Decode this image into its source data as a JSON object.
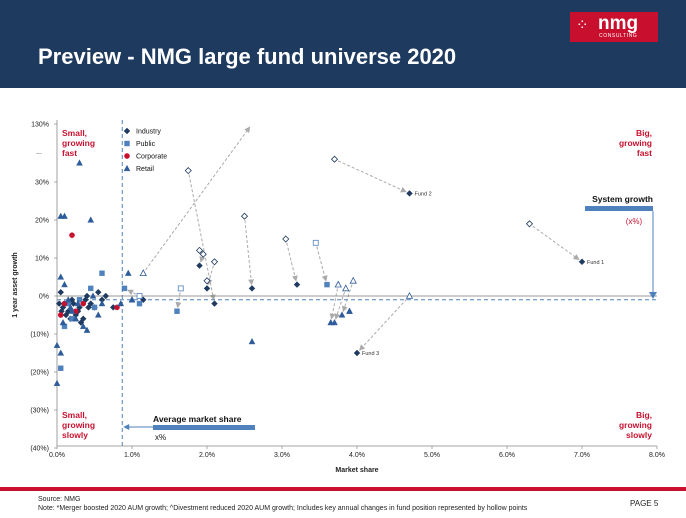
{
  "header": {
    "title": "Preview - NMG large fund universe 2020",
    "logo_text": "nmg",
    "logo_sub": "CONSULTING"
  },
  "colors": {
    "header_bg": "#1e3a5f",
    "accent_red": "#c8102e",
    "industry": "#1e3a5f",
    "public": "#4f81bd",
    "corporate": "#c8102e",
    "retail": "#2e5c9a",
    "line_blue": "#4f81bd"
  },
  "chart_data": {
    "type": "scatter",
    "xlabel": "Market share",
    "ylabel": "1 year asset growth",
    "xlim": [
      0,
      8
    ],
    "x_ticks": [
      "0.0%",
      "1.0%",
      "2.0%",
      "3.0%",
      "4.0%",
      "5.0%",
      "6.0%",
      "7.0%",
      "8.0%"
    ],
    "y_ticks": [
      {
        "v": -40,
        "label": "(40%)"
      },
      {
        "v": -30,
        "label": "(30%)"
      },
      {
        "v": -20,
        "label": "(20%)"
      },
      {
        "v": -10,
        "label": "(10%)"
      },
      {
        "v": 0,
        "label": "0%"
      },
      {
        "v": 10,
        "label": "10%"
      },
      {
        "v": 20,
        "label": "20%"
      },
      {
        "v": 30,
        "label": "30%"
      },
      {
        "v": 130,
        "label": "130%"
      }
    ],
    "y_break_label": "...",
    "grid": false,
    "legend_position": "top-left",
    "legend": [
      "Industry",
      "Public",
      "Corporate",
      "Retail"
    ],
    "quadrants": {
      "top_left": [
        "Small,",
        "growing",
        "fast"
      ],
      "top_right": [
        "Big,",
        "growing",
        "fast"
      ],
      "bottom_left": [
        "Small,",
        "growing",
        "slowly"
      ],
      "bottom_right": [
        "Big,",
        "growing",
        "slowly"
      ]
    },
    "system_growth": {
      "label": "System growth",
      "value_label": "(x%)",
      "y": -1
    },
    "average_market_share": {
      "label": "Average market share",
      "value_label": "x%",
      "x": 0.87
    },
    "labels": [
      {
        "text": "Fund 1",
        "x": 7.0,
        "y": 9
      },
      {
        "text": "Fund 2",
        "x": 4.7,
        "y": 27
      },
      {
        "text": "Fund 3",
        "x": 4.0,
        "y": -15
      }
    ],
    "series": [
      {
        "name": "Industry",
        "marker": "diamond",
        "points": [
          [
            7.0,
            9
          ],
          [
            4.7,
            27
          ],
          [
            4.0,
            -15
          ],
          [
            2.6,
            2
          ],
          [
            2.1,
            -2
          ],
          [
            1.9,
            8
          ],
          [
            2.0,
            2
          ],
          [
            3.2,
            3
          ],
          [
            0.05,
            1
          ],
          [
            0.1,
            -2
          ],
          [
            0.15,
            -4
          ],
          [
            0.2,
            -1
          ],
          [
            0.25,
            -5
          ],
          [
            0.3,
            -3
          ],
          [
            0.35,
            -6
          ],
          [
            0.4,
            0
          ],
          [
            0.45,
            -2
          ],
          [
            0.5,
            -3
          ],
          [
            0.55,
            1
          ],
          [
            0.6,
            -1
          ],
          [
            0.65,
            0
          ],
          [
            0.08,
            -3
          ],
          [
            0.12,
            -5
          ],
          [
            0.18,
            -6
          ],
          [
            0.22,
            -2
          ],
          [
            0.28,
            -4
          ],
          [
            0.32,
            -7
          ],
          [
            0.38,
            -1
          ],
          [
            0.42,
            -3
          ],
          [
            1.15,
            -1
          ],
          [
            0.75,
            -3
          ],
          [
            0.03,
            -2
          ],
          [
            0.06,
            -4
          ]
        ]
      },
      {
        "name": "Industry (prior)",
        "marker": "diamond-hollow",
        "points": [
          [
            6.3,
            19
          ],
          [
            3.7,
            36
          ],
          [
            2.5,
            21
          ],
          [
            1.75,
            33
          ],
          [
            1.95,
            11
          ],
          [
            2.1,
            9
          ],
          [
            3.05,
            15
          ],
          [
            1.9,
            12
          ],
          [
            2.0,
            4
          ]
        ]
      },
      {
        "name": "Public",
        "marker": "square",
        "points": [
          [
            1.6,
            -4
          ],
          [
            3.6,
            3
          ],
          [
            0.6,
            6
          ],
          [
            0.9,
            2
          ],
          [
            0.05,
            -19
          ],
          [
            0.15,
            -2
          ],
          [
            0.2,
            -6
          ],
          [
            0.3,
            -1
          ],
          [
            0.5,
            -3
          ],
          [
            0.45,
            2
          ],
          [
            0.1,
            -8
          ],
          [
            1.1,
            -2
          ]
        ]
      },
      {
        "name": "Public (prior)",
        "marker": "square-hollow",
        "points": [
          [
            1.65,
            2
          ],
          [
            3.45,
            14
          ],
          [
            1.1,
            0
          ]
        ]
      },
      {
        "name": "Corporate",
        "marker": "circle",
        "points": [
          [
            0.2,
            16
          ],
          [
            0.05,
            -5
          ],
          [
            0.8,
            -3
          ],
          [
            0.1,
            -2
          ],
          [
            0.35,
            -2
          ],
          [
            0.25,
            -4
          ]
        ]
      },
      {
        "name": "Retail",
        "marker": "triangle",
        "points": [
          [
            2.6,
            -12
          ],
          [
            0.3,
            35
          ],
          [
            0.05,
            21
          ],
          [
            0.1,
            21
          ],
          [
            0.45,
            20
          ],
          [
            0.0,
            -13
          ],
          [
            0.0,
            -23
          ],
          [
            0.05,
            -15
          ],
          [
            0.95,
            6
          ],
          [
            0.85,
            -2
          ],
          [
            1.0,
            -1
          ],
          [
            3.65,
            -7
          ],
          [
            3.7,
            -7
          ],
          [
            3.8,
            -5
          ],
          [
            3.9,
            -4
          ],
          [
            3.9,
            -4
          ],
          [
            0.05,
            5
          ],
          [
            0.1,
            3
          ],
          [
            0.15,
            -1
          ],
          [
            0.2,
            -4
          ],
          [
            0.25,
            -6
          ],
          [
            0.35,
            -8
          ],
          [
            0.4,
            -9
          ],
          [
            0.55,
            -5
          ],
          [
            0.6,
            -2
          ],
          [
            0.08,
            -7
          ],
          [
            0.18,
            -3
          ],
          [
            0.28,
            -2
          ],
          [
            0.48,
            0
          ],
          [
            1.0,
            -1
          ]
        ]
      },
      {
        "name": "Retail (prior)",
        "marker": "triangle-hollow",
        "points": [
          [
            1.15,
            6
          ],
          [
            3.75,
            3
          ],
          [
            3.85,
            2
          ],
          [
            3.95,
            4
          ],
          [
            4.7,
            0
          ]
        ]
      }
    ],
    "arrows": [
      [
        1.15,
        6,
        2.6,
        130
      ],
      [
        6.3,
        19,
        7.0,
        9
      ],
      [
        3.7,
        36,
        4.7,
        27
      ],
      [
        2.5,
        21,
        2.6,
        2
      ],
      [
        1.75,
        33,
        2.1,
        -2
      ],
      [
        1.95,
        11,
        1.9,
        8
      ],
      [
        2.1,
        9,
        2.0,
        2
      ],
      [
        3.05,
        15,
        3.2,
        3
      ],
      [
        3.45,
        14,
        3.6,
        3
      ],
      [
        1.65,
        2,
        1.6,
        -4
      ],
      [
        1.1,
        0,
        0.9,
        2
      ],
      [
        3.75,
        3,
        3.65,
        -7
      ],
      [
        3.85,
        2,
        3.7,
        -7
      ],
      [
        3.95,
        4,
        3.8,
        -5
      ],
      [
        4.7,
        0,
        4.0,
        -15
      ]
    ]
  },
  "footer": {
    "source": "Source: NMG",
    "note": "Note: *Merger boosted 2020 AUM growth; ^Divestment reduced 2020 AUM growth; Includes key annual changes in fund position represented by hollow points",
    "page": "PAGE 5"
  }
}
